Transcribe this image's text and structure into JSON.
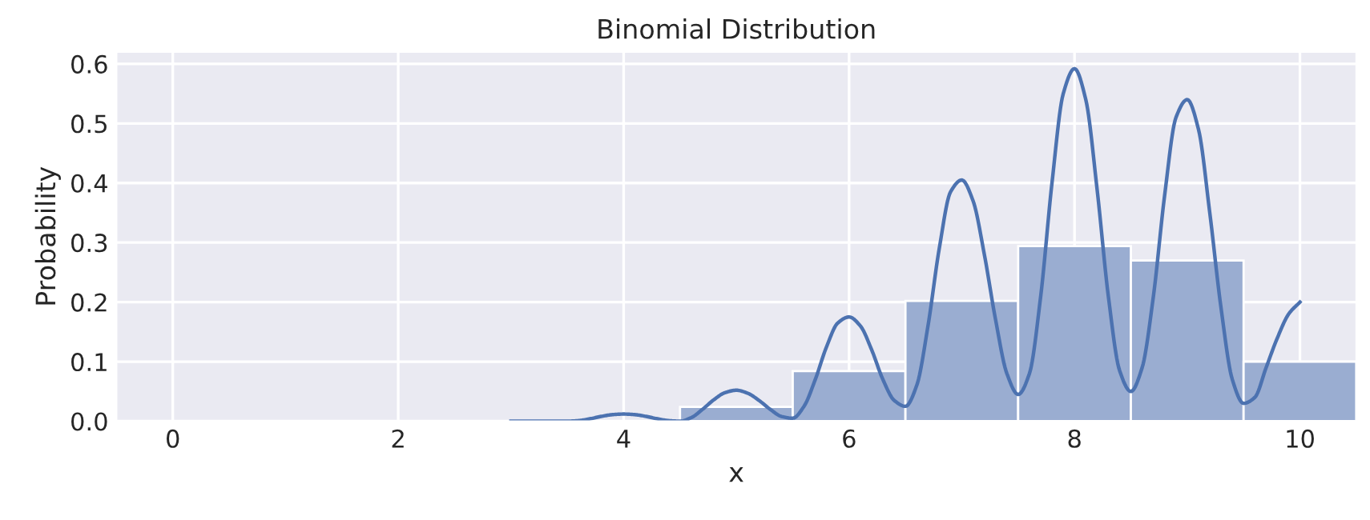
{
  "chart_data": {
    "type": "histogram",
    "title": "Binomial Distribution",
    "xlabel": "x",
    "ylabel": "Probability",
    "bins": [
      2.5,
      3.5,
      4.5,
      5.5,
      6.5,
      7.5,
      8.5,
      9.5,
      10.5
    ],
    "values": [
      null,
      null,
      0.024,
      0.084,
      0.202,
      0.294,
      0.27,
      0.1
    ],
    "color": "#9aadd1",
    "series": [
      {
        "type": "line",
        "color": "#4c72b0",
        "x": [
          3.0,
          3.1,
          3.2,
          3.3,
          3.4,
          3.5,
          3.6,
          3.7,
          3.8,
          3.9,
          4.0,
          4.1,
          4.2,
          4.3,
          4.4,
          4.5,
          4.6,
          4.7,
          4.8,
          4.9,
          5.0,
          5.1,
          5.2,
          5.3,
          5.4,
          5.5,
          5.6,
          5.7,
          5.8,
          5.9,
          6.0,
          6.1,
          6.2,
          6.3,
          6.4,
          6.5,
          6.6,
          6.7,
          6.8,
          6.9,
          7.0,
          7.1,
          7.2,
          7.3,
          7.4,
          7.5,
          7.6,
          7.7,
          7.8,
          7.9,
          8.0,
          8.1,
          8.2,
          8.3,
          8.4,
          8.5,
          8.6,
          8.7,
          8.8,
          8.9,
          9.0,
          9.1,
          9.2,
          9.3,
          9.4,
          9.5,
          9.6,
          9.7,
          9.8,
          9.9,
          10.0
        ],
        "values": [
          0.0,
          0.0,
          0.0,
          0.0,
          0.0,
          0.0,
          0.001,
          0.004,
          0.008,
          0.011,
          0.012,
          0.011,
          0.008,
          0.004,
          0.001,
          0.0,
          0.006,
          0.02,
          0.036,
          0.048,
          0.052,
          0.047,
          0.035,
          0.02,
          0.008,
          0.005,
          0.025,
          0.07,
          0.125,
          0.165,
          0.175,
          0.16,
          0.12,
          0.07,
          0.035,
          0.025,
          0.06,
          0.16,
          0.29,
          0.385,
          0.405,
          0.37,
          0.28,
          0.17,
          0.08,
          0.045,
          0.08,
          0.21,
          0.4,
          0.55,
          0.592,
          0.54,
          0.39,
          0.21,
          0.085,
          0.05,
          0.09,
          0.21,
          0.38,
          0.51,
          0.54,
          0.49,
          0.35,
          0.19,
          0.07,
          0.03,
          0.04,
          0.09,
          0.14,
          0.18,
          0.2
        ]
      }
    ],
    "xlim": [
      -0.5,
      10.5
    ],
    "ylim": [
      0,
      0.62
    ],
    "xticks": [
      0,
      2,
      4,
      6,
      8,
      10
    ],
    "yticks": [
      {
        "value": 0,
        "label": "0.0"
      },
      0.1,
      0.2,
      0.3,
      0.4,
      0.5,
      0.6
    ],
    "grid": true
  }
}
